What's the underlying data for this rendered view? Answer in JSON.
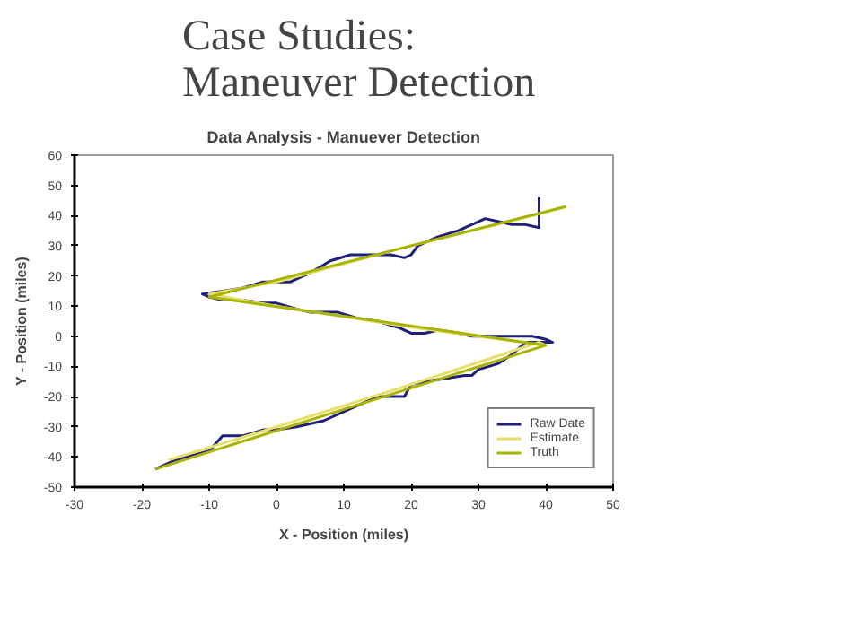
{
  "chart_data": {
    "type": "line",
    "title": "Case Studies:\nManeuver Detection",
    "subtitle": "Data Analysis - Manuever Detection",
    "xlabel": "X - Position (miles)",
    "ylabel": "Y - Position (miles)",
    "xlim": [
      -30,
      50
    ],
    "ylim": [
      -50,
      60
    ],
    "xticks": [
      -30,
      -20,
      -10,
      0,
      10,
      20,
      30,
      40,
      50
    ],
    "yticks": [
      -50,
      -40,
      -30,
      -20,
      -10,
      0,
      10,
      20,
      30,
      40,
      50,
      60
    ],
    "grid": false,
    "legend": "bottom right",
    "series": [
      {
        "name": "Raw Date",
        "color": "#1f1f7a",
        "x": [
          -18,
          -15,
          -10,
          -8,
          -5,
          -2,
          0,
          3,
          7,
          10,
          12,
          15,
          17,
          19,
          20,
          22,
          25,
          28,
          29,
          30,
          33,
          35,
          37,
          39,
          41,
          40,
          38,
          35,
          31,
          29,
          27,
          24,
          22,
          20,
          18,
          15,
          12,
          9,
          7,
          5,
          3,
          0,
          -2,
          -5,
          -8,
          -10,
          -11,
          -8,
          -5,
          -2,
          0,
          2,
          5,
          8,
          11,
          14,
          17,
          19,
          20,
          21,
          24,
          27,
          31,
          33,
          35,
          37,
          39,
          39
        ],
        "values": [
          -44,
          -41,
          -38,
          -33,
          -33,
          -31,
          -31,
          -30,
          -28,
          -25,
          -23,
          -20,
          -20,
          -20,
          -16,
          -15,
          -14,
          -13,
          -13,
          -11,
          -9,
          -6,
          -2,
          -2,
          -2,
          -1,
          0,
          0,
          0,
          0,
          1,
          2,
          1,
          1,
          3,
          5,
          6,
          8,
          8,
          8,
          9,
          11,
          11,
          12,
          12,
          13,
          14,
          15,
          16,
          18,
          18,
          18,
          21,
          25,
          27,
          27,
          27,
          26,
          27,
          30,
          33,
          35,
          39,
          38,
          37,
          37,
          36,
          46
        ]
      },
      {
        "name": "Estimate",
        "color": "#e6df6a",
        "x": [
          -16,
          0,
          20,
          39,
          40,
          20,
          0,
          -10,
          0,
          20,
          38,
          43
        ],
        "values": [
          -41,
          -30,
          -16,
          -2,
          -3,
          3,
          10,
          14,
          18,
          30,
          40,
          43
        ]
      },
      {
        "name": "Truth",
        "color": "#a8b400",
        "x": [
          -18,
          40,
          -10,
          43
        ],
        "values": [
          -44,
          -3,
          13,
          43
        ]
      }
    ]
  }
}
